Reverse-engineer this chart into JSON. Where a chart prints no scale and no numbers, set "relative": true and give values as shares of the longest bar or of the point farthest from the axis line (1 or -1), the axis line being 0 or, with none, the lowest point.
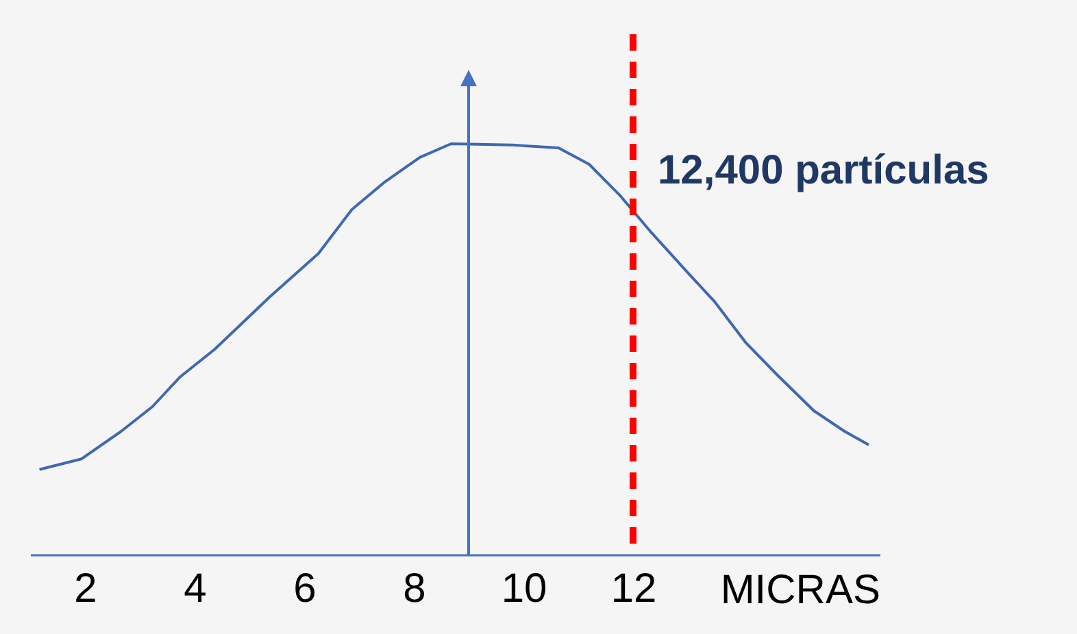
{
  "chart_data": {
    "type": "line",
    "relative": true,
    "xlabel": "MICRAS",
    "xlim": [
      1,
      16.5
    ],
    "xticks": [
      2,
      4,
      6,
      8,
      10,
      12
    ],
    "grid": false,
    "marker": "none",
    "line_style": "solid",
    "x": [
      1.17,
      1.94,
      2.66,
      3.23,
      3.74,
      4.37,
      5.37,
      6.26,
      6.87,
      7.47,
      8.11,
      8.68,
      9.8,
      10.64,
      11.2,
      11.77,
      12.34,
      13.02,
      13.48,
      14.05,
      14.61,
      15.3,
      15.86,
      16.3
    ],
    "series": [
      {
        "color": "#4068b0",
        "values": [
          0.207,
          0.233,
          0.3,
          0.36,
          0.433,
          0.5,
          0.627,
          0.733,
          0.84,
          0.907,
          0.967,
          1.0,
          0.997,
          0.99,
          0.95,
          0.873,
          0.783,
          0.683,
          0.617,
          0.517,
          0.44,
          0.35,
          0.3,
          0.267
        ]
      }
    ],
    "ref_lines": [
      {
        "axis": "x",
        "value": 9,
        "color": "#4472c4",
        "line_style": "solid"
      },
      {
        "axis": "x",
        "value": 12,
        "label": "12,400 partículas",
        "color": "#ff0000",
        "line_style": "dashed"
      }
    ]
  }
}
